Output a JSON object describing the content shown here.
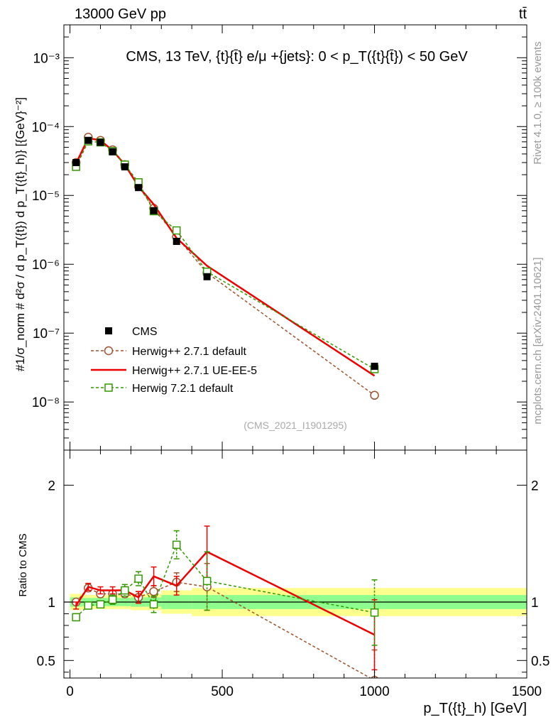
{
  "header": {
    "left": "13000 GeV pp",
    "right": "tt̄"
  },
  "side_labels": {
    "rivet": "Rivet 4.1.0, ≥ 100k events",
    "mcplots": "mcplots.cern.ch [arXiv:2401.10621]"
  },
  "colors": {
    "data": "#000000",
    "h271def": "#a0522d",
    "h271ue": "#ee0000",
    "h721": "#339900",
    "band_inner": "#8eff8e",
    "band_outer": "#ffff8e"
  },
  "chart_data": {
    "type": "line",
    "title": "CMS, 13 TeV, {t}{t̄} e/μ +{jets}: 0 <  p_T({t}{t̄}) < 50 GeV",
    "xlabel": "p_T({t}_h) [GeV]",
    "ylabel": "#1/σ_norm # d²σ / d p_T({t}) d p_T({t}_h)} [{GeV}⁻²]",
    "ratio_ylabel": "Ratio to CMS",
    "watermark": "(CMS_2021_I1901295)",
    "xlim": [
      -20,
      1500
    ],
    "ylim": [
      2e-09,
      0.003
    ],
    "ratio_ylim": [
      0.35,
      2.3
    ],
    "xticks": [
      0,
      500,
      1000,
      1500
    ],
    "yticks_labels": [
      "10⁻⁸",
      "10⁻⁷",
      "10⁻⁶",
      "10⁻⁵",
      "10⁻⁴",
      "10⁻³"
    ],
    "yticks_values": [
      1e-08,
      1e-07,
      1e-06,
      1e-05,
      0.0001,
      0.001
    ],
    "ratio_ticks": [
      0.5,
      1,
      2
    ],
    "ratio_tick_labels": [
      "0.5",
      "1",
      "2"
    ],
    "x": [
      20,
      60,
      100,
      140,
      180,
      225,
      275,
      350,
      450,
      1000
    ],
    "bin_edges": [
      0,
      40,
      80,
      120,
      160,
      200,
      250,
      300,
      400,
      500,
      1500
    ],
    "band_inner": [
      0.04,
      0.035,
      0.035,
      0.035,
      0.035,
      0.04,
      0.04,
      0.06,
      0.06,
      0.06
    ],
    "band_outer": [
      0.07,
      0.06,
      0.06,
      0.06,
      0.06,
      0.07,
      0.07,
      0.1,
      0.12,
      0.12
    ],
    "series": [
      {
        "name": "CMS",
        "key": "data",
        "values": [
          3e-05,
          6.3e-05,
          5.9e-05,
          4.3e-05,
          2.6e-05,
          1.3e-05,
          6e-06,
          2.15e-06,
          6.6e-07,
          3.3e-08
        ]
      },
      {
        "name": "Herwig++ 2.7.1 default",
        "key": "h271def",
        "values": [
          3e-05,
          7e-05,
          6.3e-05,
          4.6e-05,
          2.8e-05,
          1.35e-05,
          6.5e-06,
          2.5e-06,
          7.5e-07,
          1.25e-08
        ],
        "ratio": [
          1.0,
          1.12,
          1.07,
          1.07,
          1.07,
          1.04,
          1.09,
          1.17,
          1.13,
          0.33
        ],
        "ratio_err": [
          0.02,
          0.03,
          0.03,
          0.03,
          0.03,
          0.05,
          0.05,
          0.08,
          0.2,
          0.26
        ]
      },
      {
        "name": "Herwig++ 2.7.1 UE-EE-5",
        "key": "h271ue",
        "values": [
          2.9e-05,
          6.8e-05,
          6.3e-05,
          4.5e-05,
          2.8e-05,
          1.35e-05,
          7.4e-06,
          2.4e-06,
          9.5e-07,
          2.4e-08
        ],
        "ratio": [
          0.97,
          1.13,
          1.1,
          1.1,
          1.1,
          1.04,
          1.22,
          1.14,
          1.43,
          0.72
        ],
        "ratio_err": [
          0.03,
          0.03,
          0.03,
          0.03,
          0.03,
          0.05,
          0.08,
          0.08,
          0.22,
          0.3
        ]
      },
      {
        "name": "Herwig 7.2.1 default",
        "key": "h721",
        "values": [
          2.6e-05,
          6.1e-05,
          5.9e-05,
          4.4e-05,
          2.8e-05,
          1.55e-05,
          5.9e-06,
          3.1e-06,
          7.8e-07,
          3e-08
        ],
        "ratio": [
          0.87,
          0.97,
          0.98,
          1.02,
          1.1,
          1.2,
          0.98,
          1.49,
          1.18,
          0.91
        ],
        "ratio_err": [
          0.03,
          0.03,
          0.03,
          0.04,
          0.05,
          0.06,
          0.07,
          0.12,
          0.25,
          0.28
        ]
      }
    ]
  }
}
